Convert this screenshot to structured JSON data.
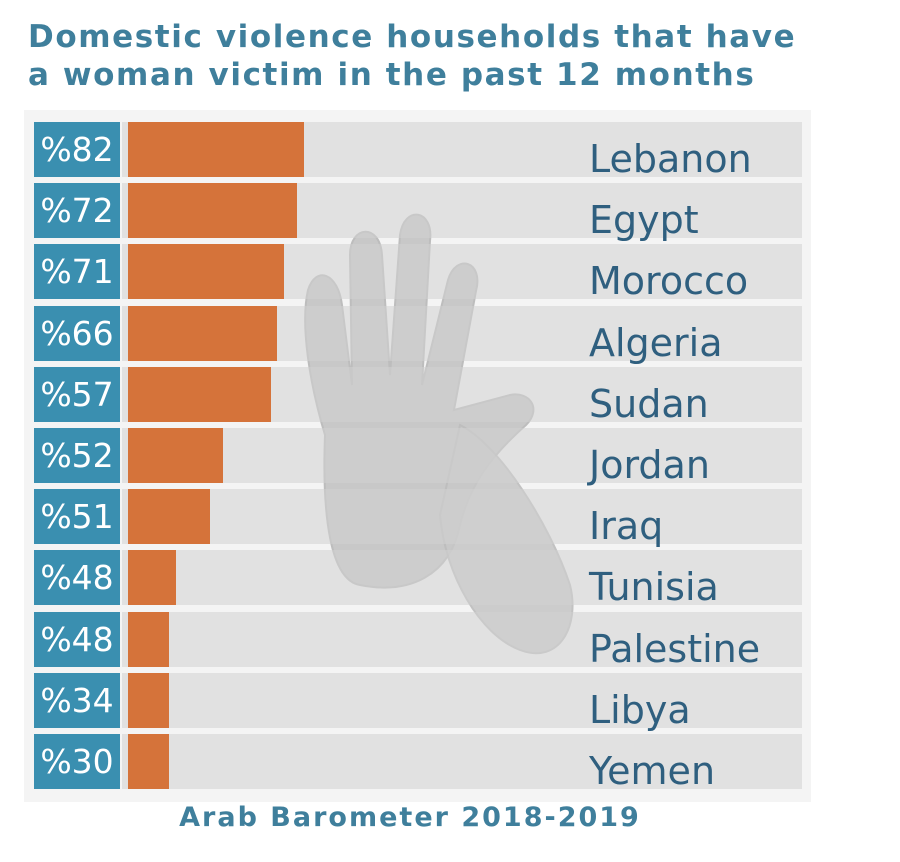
{
  "title_line1": "Domestic violence households that have",
  "title_line2": "a woman victim in the past 12 months",
  "source": "Arab Barometer 2018-2019",
  "colors": {
    "bar": "#d5733a",
    "label_box": "#3a8fb0",
    "text": "#3f7f9c"
  },
  "chart_data": {
    "type": "bar",
    "orientation": "horizontal",
    "title": "Domestic violence households that have a woman victim in the past 12 months",
    "categories": [
      "Lebanon",
      "Egypt",
      "Morocco",
      "Algeria",
      "Sudan",
      "Jordan",
      "Iraq",
      "Tunisia",
      "Palestine",
      "Libya",
      "Yemen"
    ],
    "values": [
      82,
      72,
      71,
      66,
      57,
      52,
      51,
      48,
      48,
      34,
      30
    ],
    "value_labels": [
      "%82",
      "%72",
      "%71",
      "%66",
      "%57",
      "%52",
      "%51",
      "%48",
      "%48",
      "%34",
      "%30"
    ],
    "xlabel": "",
    "ylabel": "",
    "grid": false
  }
}
